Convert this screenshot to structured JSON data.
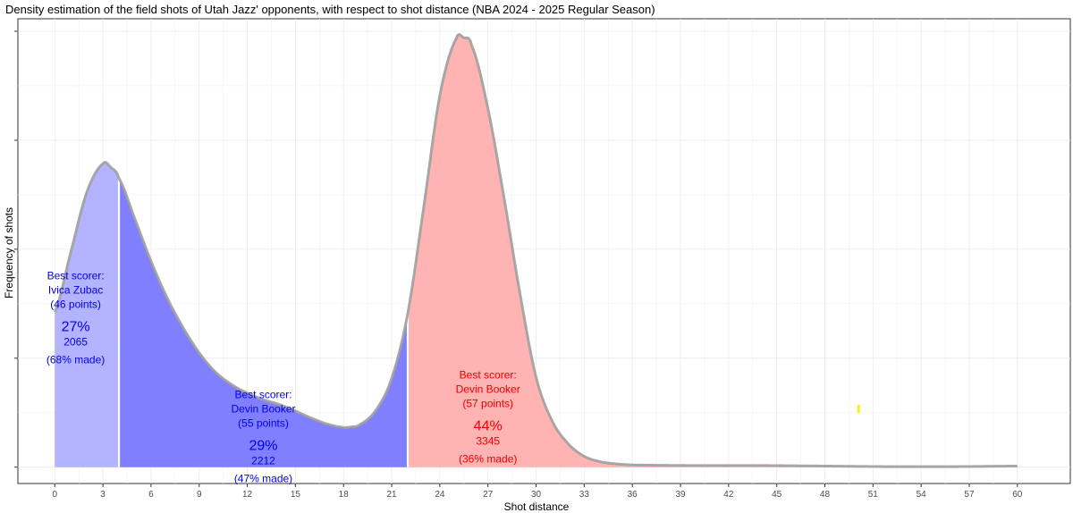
{
  "colors": {
    "zone1": "#b3b3ff",
    "zone2": "#7f7fff",
    "zone3": "#ffb3b3",
    "curve": "#a0a0a0",
    "blue_text": "#0000ee",
    "red_text": "#ee0000",
    "marker": "#ffee00"
  },
  "chart_data": {
    "type": "area",
    "title": "Density estimation of the field shots of Utah Jazz' opponents, with respect to shot distance (NBA 2024 - 2025 Regular Season)",
    "xlabel": "Shot distance",
    "ylabel": "Frequency of shots",
    "xlim": [
      -2.3,
      63.3
    ],
    "ylim": [
      -0.003,
      0.0823
    ],
    "x_ticks": [
      "0",
      "3",
      "6",
      "9",
      "12",
      "15",
      "18",
      "21",
      "24",
      "27",
      "30",
      "33",
      "36",
      "39",
      "42",
      "45",
      "48",
      "51",
      "54",
      "57",
      "60"
    ],
    "y_tick_marks": [
      0,
      0.02,
      0.04,
      0.06,
      0.08
    ],
    "grid": true,
    "legend": "none",
    "density": {
      "x": [
        0,
        1,
        2,
        3,
        3.5,
        4,
        5,
        6,
        7,
        8,
        9,
        10,
        11,
        12,
        13,
        14,
        15,
        16,
        17,
        18,
        18.5,
        19,
        20,
        21,
        22,
        23,
        24,
        25,
        25.5,
        26,
        27,
        28,
        29,
        30,
        31,
        32,
        33,
        34,
        35,
        36,
        40,
        44,
        48,
        52,
        56,
        60
      ],
      "y": [
        0.0285,
        0.0395,
        0.0505,
        0.0557,
        0.055,
        0.053,
        0.0455,
        0.0378,
        0.0311,
        0.0256,
        0.021,
        0.0175,
        0.0152,
        0.0136,
        0.0124,
        0.0115,
        0.0103,
        0.009,
        0.0079,
        0.0073,
        0.0074,
        0.0078,
        0.0104,
        0.0163,
        0.0282,
        0.0478,
        0.0682,
        0.0785,
        0.0788,
        0.0773,
        0.0658,
        0.0495,
        0.0318,
        0.0165,
        0.0085,
        0.0043,
        0.002,
        0.001,
        0.0006,
        0.0004,
        0.0003,
        0.0003,
        0.0002,
        0.0001,
        0.0001,
        0.0002
      ]
    },
    "zones": [
      {
        "from": 0,
        "to": 4,
        "best_scorer_label": "Best scorer:",
        "best_scorer": "Ivica Zubac",
        "points": "(46 points)",
        "percent": "27%",
        "shots": "2065",
        "made": "(68% made)"
      },
      {
        "from": 4,
        "to": 22,
        "best_scorer_label": "Best scorer:",
        "best_scorer": "Devin Booker",
        "points": "(55 points)",
        "percent": "29%",
        "shots": "2212",
        "made": "(47% made)"
      },
      {
        "from": 22,
        "to": 60,
        "best_scorer_label": "Best scorer:",
        "best_scorer": "Devin Booker",
        "points": "(57 points)",
        "percent": "44%",
        "shots": "3345",
        "made": "(36% made)"
      }
    ],
    "marker": {
      "x": 50.1,
      "y": 0.0011
    }
  }
}
